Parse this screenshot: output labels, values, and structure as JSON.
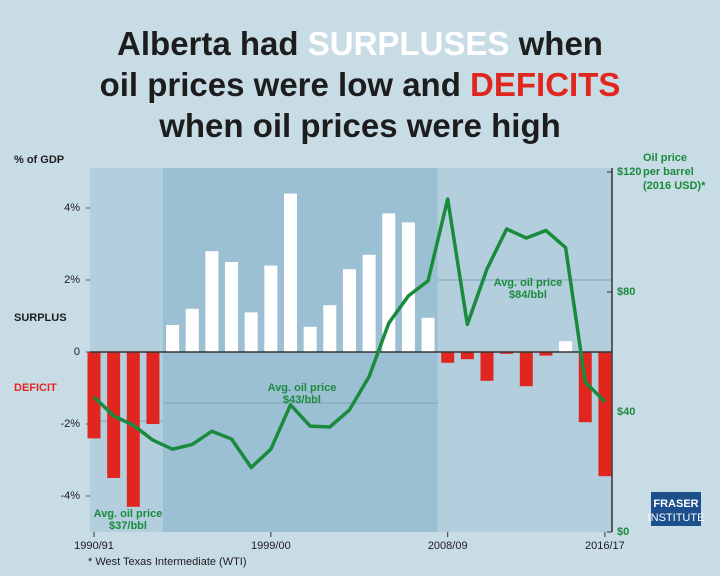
{
  "chart_data": {
    "type": "bar_line",
    "title": [
      [
        "Alberta had ",
        "SURPLUSES",
        " when"
      ],
      [
        "oil prices were low and ",
        "DEFICITS"
      ],
      [
        "when oil prices were high"
      ]
    ],
    "y_axis_label": "% of GDP",
    "y2_axis_label": [
      "Oil price",
      "per barrel",
      "(2016 USD)*"
    ],
    "surplus_label": "SURPLUS",
    "deficit_label": "DEFICIT",
    "footnote": "* West Texas Intermediate (WTI)",
    "logo": [
      "FRASER",
      "INSTITUTE"
    ],
    "categories": [
      "1990/91",
      null,
      null,
      null,
      null,
      null,
      null,
      null,
      null,
      "1999/00",
      null,
      null,
      null,
      null,
      null,
      null,
      null,
      null,
      "2008/09",
      null,
      null,
      null,
      null,
      null,
      null,
      null,
      "2016/17"
    ],
    "series": [
      {
        "name": "Budget balance (% of GDP)",
        "type": "bar",
        "color_pos": "#ffffff",
        "color_neg": "#e0261f",
        "values": [
          -2.4,
          -3.5,
          -4.3,
          -2.0,
          0.75,
          1.2,
          2.8,
          2.5,
          1.1,
          2.4,
          4.4,
          0.7,
          1.3,
          2.3,
          2.7,
          3.85,
          3.6,
          0.95,
          -0.3,
          -0.2,
          -0.8,
          -0.05,
          -0.95,
          -0.1,
          0.3,
          -1.95,
          -3.45
        ]
      },
      {
        "name": "Oil price per barrel",
        "type": "line",
        "axis": "y2",
        "color": "#1a8a3c",
        "values": [
          45,
          38.7,
          35.6,
          30.6,
          27.6,
          29.2,
          33.6,
          31,
          21.5,
          27.6,
          42.4,
          35.3,
          35,
          40.7,
          51.8,
          69.6,
          78.7,
          83.7,
          111,
          69.2,
          87.7,
          101,
          98,
          100.5,
          94.8,
          50,
          43.4
        ]
      }
    ],
    "averages": [
      {
        "text": "Avg. oil price",
        "value": 37,
        "value_label": "$37/bbl"
      },
      {
        "text": "Avg. oil price",
        "value": 43,
        "value_label": "$43/bbl"
      },
      {
        "text": "Avg. oil price",
        "value": 84,
        "value_label": "$84/bbl"
      }
    ],
    "ylim": [
      -5,
      5
    ],
    "yticks": [
      {
        "value": -4,
        "label": "-4%"
      },
      {
        "value": -2,
        "label": "-2%"
      },
      0,
      {
        "value": 2,
        "label": "2%"
      },
      {
        "value": 4,
        "label": "4%"
      }
    ],
    "y2lim": [
      0,
      120
    ],
    "y2ticks": [
      {
        "value": 0,
        "label": "$0"
      },
      {
        "value": 40,
        "label": "$40"
      },
      {
        "value": 80,
        "label": "$80"
      },
      {
        "value": 120,
        "label": "$120"
      }
    ]
  }
}
